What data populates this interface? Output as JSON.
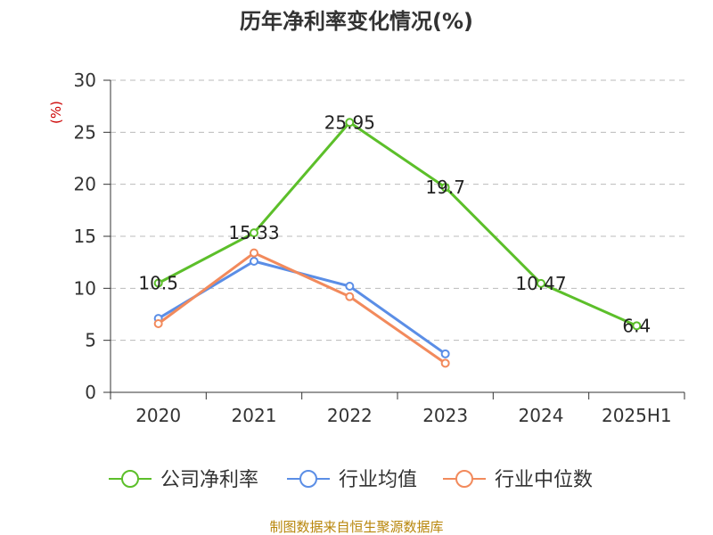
{
  "chart_data": {
    "type": "line",
    "title": "历年净利率变化情况(%)",
    "ylabel": "(%)",
    "xlabel": "",
    "categories": [
      "2020",
      "2021",
      "2022",
      "2023",
      "2024",
      "2025H1"
    ],
    "ylim": [
      0,
      30
    ],
    "yticks": [
      0,
      5,
      10,
      15,
      20,
      25,
      30
    ],
    "grid": true,
    "legend_position": "bottom",
    "series": [
      {
        "name": "公司净利率",
        "color": "#5cbf2a",
        "values": [
          10.5,
          15.33,
          25.95,
          19.7,
          10.47,
          6.4
        ],
        "labels": [
          "10.5",
          "15.33",
          "25.95",
          "19.7",
          "10.47",
          "6.4"
        ]
      },
      {
        "name": "行业均值",
        "color": "#5b8ee6",
        "values": [
          7.1,
          12.6,
          10.2,
          3.7,
          null,
          null
        ]
      },
      {
        "name": "行业中位数",
        "color": "#f28a5c",
        "values": [
          6.6,
          13.4,
          9.2,
          2.8,
          null,
          null
        ]
      }
    ]
  },
  "source_text": "制图数据来自恒生聚源数据库"
}
